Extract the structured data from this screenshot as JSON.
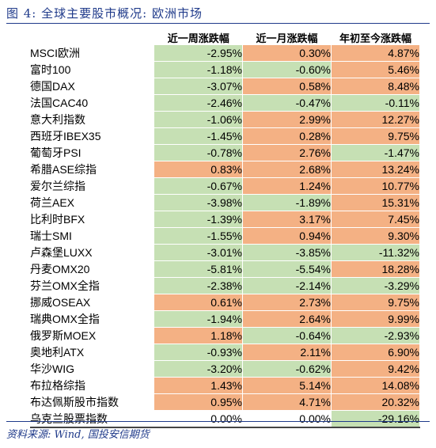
{
  "title": "图 4: 全球主要股市概况: 欧洲市场",
  "headers": [
    "近一周涨跌幅",
    "近一月涨跌幅",
    "年初至今涨跌幅"
  ],
  "rows": [
    {
      "name": "MSCI欧洲",
      "week": "-2.95%",
      "month": "0.30%",
      "ytd": "4.87%"
    },
    {
      "name": "富时100",
      "week": "-1.18%",
      "month": "-0.60%",
      "ytd": "5.46%"
    },
    {
      "name": "德国DAX",
      "week": "-3.07%",
      "month": "0.58%",
      "ytd": "8.48%"
    },
    {
      "name": "法国CAC40",
      "week": "-2.46%",
      "month": "-0.47%",
      "ytd": "-0.11%"
    },
    {
      "name": "意大利指数",
      "week": "-1.06%",
      "month": "2.99%",
      "ytd": "12.27%"
    },
    {
      "name": "西班牙IBEX35",
      "week": "-1.45%",
      "month": "0.28%",
      "ytd": "9.75%"
    },
    {
      "name": "葡萄牙PSI",
      "week": "-0.78%",
      "month": "2.76%",
      "ytd": "-1.47%"
    },
    {
      "name": "希腊ASE综指",
      "week": "0.83%",
      "month": "2.68%",
      "ytd": "13.24%"
    },
    {
      "name": "爱尔兰综指",
      "week": "-0.67%",
      "month": "1.24%",
      "ytd": "10.77%"
    },
    {
      "name": "荷兰AEX",
      "week": "-3.98%",
      "month": "-1.89%",
      "ytd": "15.31%"
    },
    {
      "name": "比利时BFX",
      "week": "-1.39%",
      "month": "3.17%",
      "ytd": "7.45%"
    },
    {
      "name": "瑞士SMI",
      "week": "-1.55%",
      "month": "0.94%",
      "ytd": "9.30%"
    },
    {
      "name": "卢森堡LUXX",
      "week": "-3.01%",
      "month": "-3.85%",
      "ytd": "-11.32%"
    },
    {
      "name": "丹麦OMX20",
      "week": "-5.81%",
      "month": "-5.54%",
      "ytd": "18.28%"
    },
    {
      "name": "芬兰OMX全指",
      "week": "-2.38%",
      "month": "-2.14%",
      "ytd": "-3.29%"
    },
    {
      "name": "挪威OSEAX",
      "week": "0.61%",
      "month": "2.73%",
      "ytd": "9.75%"
    },
    {
      "name": "瑞典OMX全指",
      "week": "-1.94%",
      "month": "2.64%",
      "ytd": "9.99%"
    },
    {
      "name": "俄罗斯MOEX",
      "week": "1.18%",
      "month": "-0.64%",
      "ytd": "-2.93%"
    },
    {
      "name": "奥地利ATX",
      "week": "-0.93%",
      "month": "2.11%",
      "ytd": "6.90%"
    },
    {
      "name": "华沙WIG",
      "week": "-3.20%",
      "month": "-0.62%",
      "ytd": "9.42%"
    },
    {
      "name": "布拉格综指",
      "week": "1.43%",
      "month": "5.14%",
      "ytd": "14.08%"
    },
    {
      "name": "布达佩斯股市指数",
      "week": "0.95%",
      "month": "4.71%",
      "ytd": "20.32%"
    },
    {
      "name": "乌克兰股票指数",
      "week": "0.00%",
      "month": "0.00%",
      "ytd": "-29.16%"
    }
  ],
  "colors": {
    "positive": "#f4b184",
    "negative": "#c6e0b4",
    "title": "#1f3a8a"
  },
  "source": "资料来源: Wind, 国投安信期货"
}
